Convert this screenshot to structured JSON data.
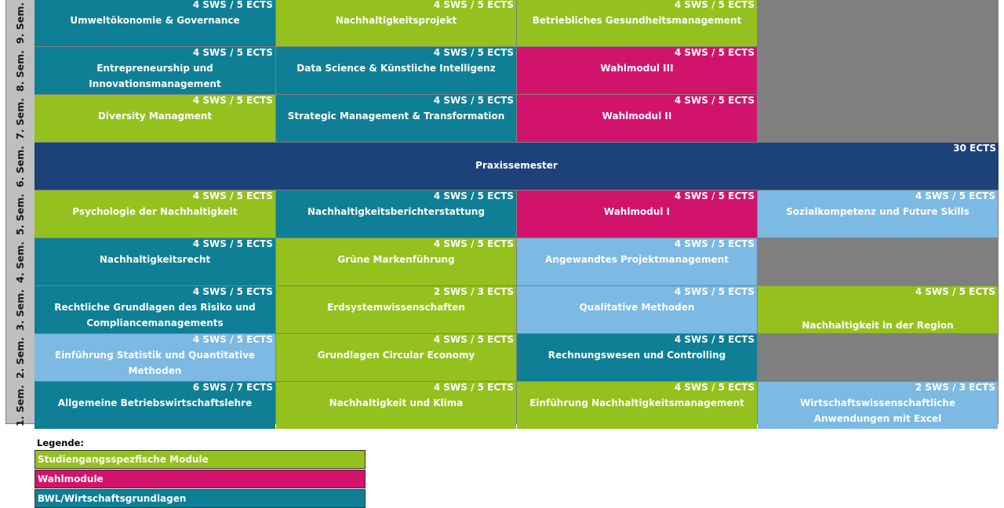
{
  "semesters": [
    "9. Sem.",
    "8. Sem.",
    "7. Sem.",
    "6. Sem.",
    "5. Sem.",
    "4. Sem.",
    "3. Sem.",
    "2. Sem.",
    "1. Sem."
  ],
  "rows": [
    [
      {
        "sws": "4 SWS / 5 ECTS",
        "name": "Umweltökonomie & Governance",
        "color": "teal"
      },
      {
        "sws": "4 SWS / 5 ECTS",
        "name": "Nachhaltigkeitsprojekt",
        "color": "green"
      },
      {
        "sws": "4 SWS / 5 ECTS",
        "name": "Betriebliches Gesundheitsmanagement",
        "color": "green"
      }
    ],
    [
      {
        "sws": "4 SWS / 5 ECTS",
        "name": "Entrepreneurship und Innovationsmanagement",
        "color": "teal"
      },
      {
        "sws": "4 SWS / 5 ECTS",
        "name": "Data Science & Künstliche Intelligenz",
        "color": "teal"
      },
      {
        "sws": "4 SWS / 5 ECTS",
        "name": "Wahlmodul III",
        "color": "pink"
      }
    ],
    [
      {
        "sws": "4 SWS / 5 ECTS",
        "name": "Diversity Managment",
        "color": "green"
      },
      {
        "sws": "4 SWS / 5 ECTS",
        "name": "Strategic Management & Transformation",
        "color": "teal"
      },
      {
        "sws": "4 SWS / 5 ECTS",
        "name": "Wahlmodul II",
        "color": "pink"
      }
    ],
    [
      {
        "sws": "30 ECTS",
        "name": "Praxissemester",
        "color": "navy",
        "span": 4
      }
    ],
    [
      {
        "sws": "4 SWS / 5 ECTS",
        "name": "Psychologie der Nachhaltigkeit",
        "color": "green"
      },
      {
        "sws": "4 SWS / 5 ECTS",
        "name": "Nachhaltigkeitsberichterstattung",
        "color": "teal"
      },
      {
        "sws": "4 SWS / 5 ECTS",
        "name": "Wahlmodul I",
        "color": "pink"
      },
      {
        "sws": "4 SWS / 5 ECTS",
        "name": "Sozialkompetenz und Future Skills",
        "color": "light"
      }
    ],
    [
      {
        "sws": "4 SWS / 5 ECTS",
        "name": "Nachhaltigkeitsrecht",
        "color": "teal"
      },
      {
        "sws": "4 SWS / 5 ECTS",
        "name": "Grüne Markenführung",
        "color": "green"
      },
      {
        "sws": "4 SWS / 5 ECTS",
        "name": "Angewandtes Projektmanagement",
        "color": "light"
      }
    ],
    [
      {
        "sws": "4 SWS / 5 ECTS",
        "name": "Rechtliche Grundlagen des Risiko und Compliancemanagements",
        "color": "teal"
      },
      {
        "sws": "2 SWS / 3 ECTS",
        "name": "Erdsystemwissenschaften",
        "color": "green"
      },
      {
        "sws": "4 SWS / 5 ECTS",
        "name": "Qualitative Methoden",
        "color": "light"
      },
      {
        "sws": "4 SWS / 5 ECTS",
        "name": "Nachhaltigkeit in der Region",
        "color": "green",
        "bottom": true
      }
    ],
    [
      {
        "sws": "4 SWS / 5 ECTS",
        "name": "Einführung Statistik und Quantitative Methoden",
        "color": "light"
      },
      {
        "sws": "4 SWS / 5 ECTS",
        "name": "Grundlagen Circular Economy",
        "color": "green"
      },
      {
        "sws": "4 SWS / 5 ECTS",
        "name": "Rechnungswesen und Controlling",
        "color": "teal"
      }
    ],
    [
      {
        "sws": "6 SWS / 7 ECTS",
        "name": "Allgemeine Betriebswirtschaftslehre",
        "color": "teal"
      },
      {
        "sws": "4 SWS / 5 ECTS",
        "name": "Nachhaltigkeit und Klima",
        "color": "green"
      },
      {
        "sws": "4 SWS / 5 ECTS",
        "name": "Einführung Nachhaltigkeitsmanagement",
        "color": "green"
      },
      {
        "sws": "2 SWS / 3 ECTS",
        "name": "Wirtschaftswissenschaftliche Anwendungen mit Excel",
        "color": "light"
      }
    ]
  ],
  "legend": {
    "title": "Legende:",
    "items": [
      {
        "label": "Studiengangsspezfische Module",
        "color": "green"
      },
      {
        "label": "Wahlmodule",
        "color": "pink"
      },
      {
        "label": "BWL/Wirtschaftsgrundlagen",
        "color": "teal"
      }
    ]
  },
  "colors": {
    "green": "#95c11f",
    "teal": "#0e7f95",
    "pink": "#d2136c",
    "light": "#7cb9e3",
    "navy": "#1d427a"
  }
}
